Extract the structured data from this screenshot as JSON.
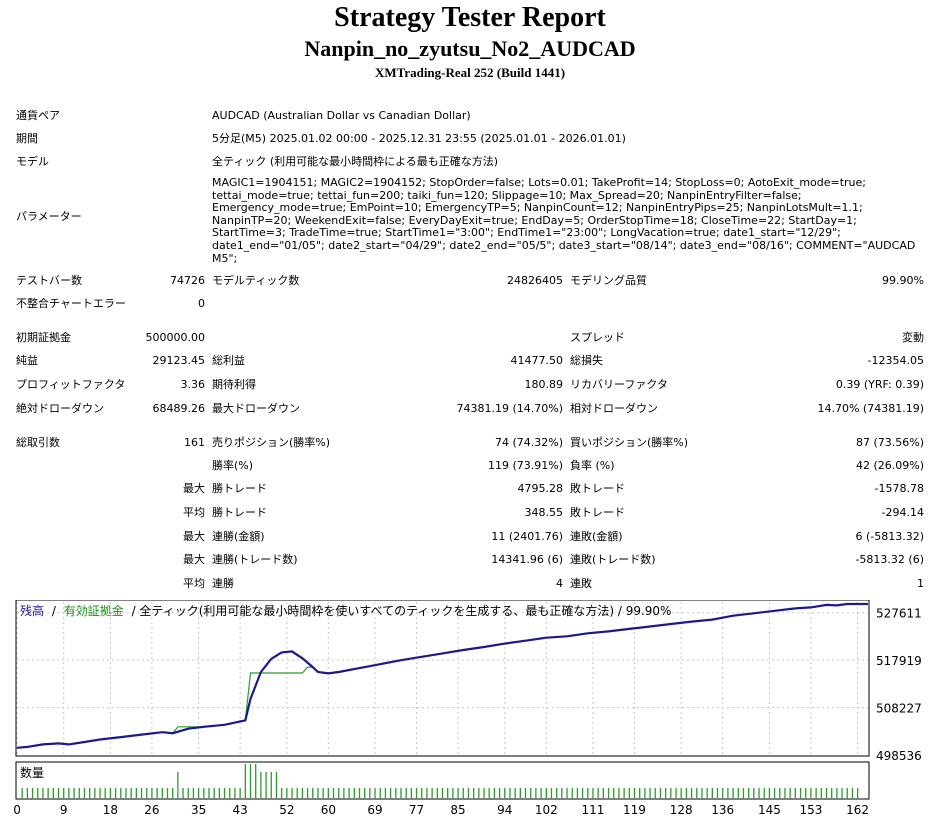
{
  "header": {
    "title": "Strategy Tester Report",
    "ea_name": "Nanpin_no_zyutsu_No2_AUDCAD",
    "server": "XMTrading-Real 252 (Build 1441)"
  },
  "info": {
    "symbol_label": "通貨ペア",
    "symbol_value": "AUDCAD (Australian Dollar vs Canadian Dollar)",
    "period_label": "期間",
    "period_value": "5分足(M5) 2025.01.02 00:00 - 2025.12.31 23:55 (2025.01.01 - 2026.01.01)",
    "model_label": "モデル",
    "model_value": "全ティック (利用可能な最小時間枠による最も正確な方法)",
    "params_label": "パラメーター",
    "params_value": "MAGIC1=1904151; MAGIC2=1904152; StopOrder=false; Lots=0.01; TakeProfit=14; StopLoss=0; AotoExit_mode=true; tettai_mode=true; tettai_fun=200; taiki_fun=120; Slippage=10; Max_Spread=20; NanpinEntryFilter=false; Emergency_mode=true; EmPoint=10; EmergencyTP=5; NanpinCount=12; NanpinEntryPips=25; NanpinLotsMult=1.1; NanpinTP=20; WeekendExit=false; EveryDayExit=true; EndDay=5; OrderStopTime=18; CloseTime=22; StartDay=1; StartTime=3; TradeTime=true; StartTime1=\"3:00\"; EndTime1=\"23:00\"; LongVacation=true; date1_start=\"12/29\"; date1_end=\"01/05\"; date2_start=\"04/29\"; date2_end=\"05/5\"; date3_start=\"08/14\"; date3_end=\"08/16\"; COMMENT=\"AUDCAD M5\";"
  },
  "stats": {
    "bars_label": "テストバー数",
    "bars_value": "74726",
    "ticks_label": "モデルティック数",
    "ticks_value": "24826405",
    "quality_label": "モデリング品質",
    "quality_value": "99.90%",
    "mismatch_label": "不整合チャートエラー",
    "mismatch_value": "0",
    "deposit_label": "初期証拠金",
    "deposit_value": "500000.00",
    "spread_label": "スプレッド",
    "spread_value": "変動",
    "net_label": "純益",
    "net_value": "29123.45",
    "gross_profit_label": "総利益",
    "gross_profit_value": "41477.50",
    "gross_loss_label": "総損失",
    "gross_loss_value": "-12354.05",
    "pf_label": "プロフィットファクタ",
    "pf_value": "3.36",
    "expected_label": "期待利得",
    "expected_value": "180.89",
    "recovery_label": "リカバリーファクタ",
    "recovery_value": "0.39 (YRF: 0.39)",
    "abs_dd_label": "絶対ドローダウン",
    "abs_dd_value": "68489.26",
    "max_dd_label": "最大ドローダウン",
    "max_dd_value": "74381.19 (14.70%)",
    "rel_dd_label": "相対ドローダウン",
    "rel_dd_value": "14.70% (74381.19)",
    "total_trades_label": "総取引数",
    "total_trades_value": "161",
    "short_label": "売りポジション(勝率%)",
    "short_value": "74 (74.32%)",
    "long_label": "買いポジション(勝率%)",
    "long_value": "87 (73.56%)",
    "winrate_label": "勝率(%)",
    "winrate_value": "119 (73.91%)",
    "lossrate_label": "負率 (%)",
    "lossrate_value": "42 (26.09%)",
    "max_label": "最大",
    "avg_label": "平均",
    "win_trade_label": "勝トレード",
    "loss_trade_label": "敗トレード",
    "max_win_value": "4795.28",
    "max_loss_value": "-1578.78",
    "avg_win_value": "348.55",
    "avg_loss_value": "-294.14",
    "consec_win_amt_label": "連勝(金額)",
    "consec_win_amt_value": "11 (2401.76)",
    "consec_loss_amt_label": "連敗(金額)",
    "consec_loss_amt_value": "6 (-5813.32)",
    "consec_win_cnt_label": "連勝(トレード数)",
    "consec_win_cnt_value": "14341.96 (6)",
    "consec_loss_cnt_label": "連敗(トレード数)",
    "consec_loss_cnt_value": "-5813.32 (6)",
    "consec_win_label": "連勝",
    "consec_win_value": "4",
    "consec_loss_label": "連敗",
    "consec_loss_value": "1"
  },
  "chart_data": {
    "type": "line",
    "legend_balance": "残高",
    "legend_sep": "/",
    "legend_equity": "有効証拠金",
    "legend_rest": "/ 全ティック(利用可能な最小時間枠を使いすべてのティックを生成する、最も正確な方法) / 99.90%",
    "y_ticks": [
      "527611",
      "517919",
      "508227",
      "498536"
    ],
    "ylim": [
      498536,
      529800
    ],
    "volume_label": "数量",
    "x_ticks": [
      "0",
      "9",
      "18",
      "26",
      "35",
      "43",
      "52",
      "60",
      "69",
      "77",
      "85",
      "94",
      "102",
      "111",
      "119",
      "128",
      "136",
      "145",
      "153",
      "162"
    ],
    "xlim": [
      0,
      164
    ],
    "colors": {
      "balance": "#1a1a8c",
      "equity": "#2c9a2c",
      "grid": "#c8c8c8",
      "volume": "#2c9a2c"
    },
    "balance": [
      [
        0,
        500000
      ],
      [
        2,
        500200
      ],
      [
        5,
        500700
      ],
      [
        8,
        500900
      ],
      [
        10,
        500700
      ],
      [
        13,
        501200
      ],
      [
        16,
        501700
      ],
      [
        20,
        502200
      ],
      [
        24,
        502700
      ],
      [
        28,
        503200
      ],
      [
        30,
        503000
      ],
      [
        33,
        503900
      ],
      [
        36,
        504300
      ],
      [
        40,
        504700
      ],
      [
        43,
        505400
      ],
      [
        44,
        505600
      ],
      [
        45,
        510000
      ],
      [
        47,
        515500
      ],
      [
        49,
        518200
      ],
      [
        51,
        519500
      ],
      [
        53,
        519700
      ],
      [
        55,
        518300
      ],
      [
        57,
        516500
      ],
      [
        58,
        515500
      ],
      [
        60,
        515200
      ],
      [
        62,
        515500
      ],
      [
        66,
        516300
      ],
      [
        70,
        517100
      ],
      [
        74,
        517900
      ],
      [
        78,
        518600
      ],
      [
        82,
        519300
      ],
      [
        86,
        520000
      ],
      [
        90,
        520600
      ],
      [
        94,
        521300
      ],
      [
        98,
        521900
      ],
      [
        102,
        522500
      ],
      [
        106,
        522800
      ],
      [
        110,
        523400
      ],
      [
        114,
        523800
      ],
      [
        118,
        524300
      ],
      [
        122,
        524800
      ],
      [
        126,
        525300
      ],
      [
        130,
        525800
      ],
      [
        134,
        526200
      ],
      [
        138,
        527000
      ],
      [
        142,
        527500
      ],
      [
        146,
        528000
      ],
      [
        150,
        528500
      ],
      [
        153,
        528700
      ],
      [
        156,
        529200
      ],
      [
        158,
        529100
      ],
      [
        160,
        529400
      ],
      [
        164,
        529400
      ]
    ],
    "equity": [
      [
        0,
        500000
      ],
      [
        2,
        500200
      ],
      [
        5,
        500700
      ],
      [
        8,
        500900
      ],
      [
        10,
        500700
      ],
      [
        13,
        501200
      ],
      [
        16,
        501700
      ],
      [
        20,
        502200
      ],
      [
        24,
        502700
      ],
      [
        28,
        503200
      ],
      [
        30,
        503000
      ],
      [
        31,
        504300
      ],
      [
        35,
        504300
      ],
      [
        36,
        504300
      ],
      [
        40,
        504700
      ],
      [
        43,
        505400
      ],
      [
        44,
        505600
      ],
      [
        45,
        515300
      ],
      [
        55,
        515300
      ],
      [
        56,
        516500
      ],
      [
        57,
        516500
      ],
      [
        58,
        515500
      ],
      [
        60,
        515200
      ],
      [
        62,
        515500
      ],
      [
        66,
        516300
      ],
      [
        70,
        517100
      ],
      [
        74,
        517900
      ],
      [
        78,
        518600
      ],
      [
        82,
        519300
      ],
      [
        86,
        520000
      ],
      [
        90,
        520600
      ],
      [
        94,
        521300
      ],
      [
        98,
        521900
      ],
      [
        102,
        522500
      ],
      [
        106,
        522800
      ],
      [
        110,
        523400
      ],
      [
        114,
        523800
      ],
      [
        118,
        524300
      ],
      [
        122,
        524800
      ],
      [
        126,
        525300
      ],
      [
        130,
        525800
      ],
      [
        134,
        526200
      ],
      [
        138,
        527000
      ],
      [
        142,
        527500
      ],
      [
        146,
        528000
      ],
      [
        150,
        528500
      ],
      [
        153,
        528700
      ],
      [
        156,
        529200
      ],
      [
        158,
        529100
      ],
      [
        160,
        529400
      ],
      [
        164,
        529400
      ]
    ]
  }
}
